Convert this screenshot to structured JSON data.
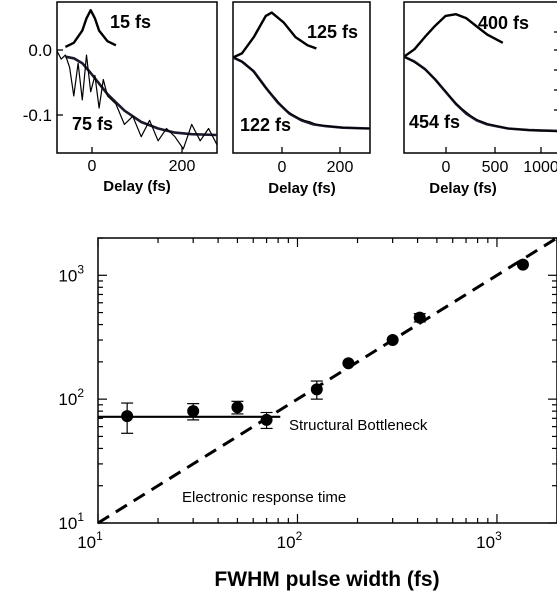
{
  "chart_data": [
    {
      "type": "line",
      "panel": "a",
      "xlabel": "Delay (fs)",
      "x_ticks": [
        "0",
        "200"
      ],
      "y_ticks": [
        "0.0",
        "-0.1"
      ],
      "xlim": [
        -80,
        300
      ],
      "ylim": [
        -0.13,
        0.055
      ],
      "labels": {
        "top": "15 fs",
        "bottom": "75 fs"
      },
      "series": [
        {
          "role": "pulse",
          "x": [
            -60,
            -40,
            -20,
            -10,
            0,
            10,
            20,
            40,
            60
          ],
          "y": [
            0.0,
            0.005,
            0.02,
            0.035,
            0.045,
            0.035,
            0.02,
            0.007,
            0.002
          ]
        },
        {
          "role": "fit",
          "x": [
            -60,
            -40,
            -20,
            0,
            20,
            40,
            80,
            120,
            160,
            200,
            240,
            300
          ],
          "y": [
            -0.012,
            -0.014,
            -0.02,
            -0.032,
            -0.045,
            -0.058,
            -0.078,
            -0.092,
            -0.1,
            -0.105,
            -0.107,
            -0.108
          ]
        },
        {
          "role": "data",
          "x": [
            -80,
            -70,
            -60,
            -50,
            -40,
            -30,
            -20,
            -10,
            0,
            10,
            20,
            30,
            40,
            60,
            80,
            100,
            120,
            140,
            160,
            180,
            200,
            220,
            240,
            260,
            280,
            300
          ],
          "y": [
            -0.005,
            -0.015,
            -0.01,
            -0.025,
            -0.06,
            -0.02,
            -0.065,
            -0.01,
            -0.055,
            -0.035,
            -0.075,
            -0.04,
            -0.06,
            -0.07,
            -0.095,
            -0.085,
            -0.11,
            -0.09,
            -0.115,
            -0.1,
            -0.11,
            -0.125,
            -0.095,
            -0.115,
            -0.1,
            -0.12
          ]
        }
      ]
    },
    {
      "type": "line",
      "panel": "b",
      "xlabel": "Delay (fs)",
      "x_ticks": [
        "0",
        "200"
      ],
      "xlim": [
        -110,
        350
      ],
      "ylim": [
        -0.13,
        0.055
      ],
      "labels": {
        "top": "125 fs",
        "bottom": "122 fs"
      },
      "series": [
        {
          "role": "pulse",
          "x": [
            -110,
            -80,
            -40,
            0,
            20,
            60,
            100,
            140,
            170
          ],
          "y": [
            -0.013,
            -0.008,
            0.012,
            0.038,
            0.042,
            0.03,
            0.012,
            0.002,
            -0.002
          ]
        },
        {
          "role": "fit",
          "x": [
            -110,
            -80,
            -40,
            0,
            40,
            80,
            120,
            160,
            200,
            260,
            350
          ],
          "y": [
            -0.013,
            -0.018,
            -0.03,
            -0.05,
            -0.068,
            -0.082,
            -0.09,
            -0.095,
            -0.097,
            -0.099,
            -0.1
          ]
        },
        {
          "role": "data",
          "x": [
            -110,
            -90,
            -70,
            -50,
            -30,
            -10,
            10,
            30,
            50,
            70,
            90,
            110,
            130,
            150,
            170,
            190,
            210,
            230,
            250,
            280,
            310,
            350
          ],
          "y": [
            -0.012,
            -0.016,
            -0.02,
            -0.027,
            -0.036,
            -0.045,
            -0.055,
            -0.062,
            -0.071,
            -0.078,
            -0.083,
            -0.087,
            -0.09,
            -0.092,
            -0.095,
            -0.096,
            -0.097,
            -0.098,
            -0.099,
            -0.099,
            -0.1,
            -0.1
          ]
        }
      ]
    },
    {
      "type": "line",
      "panel": "c",
      "xlabel": "Delay (fs)",
      "x_ticks": [
        "0",
        "500",
        "1000"
      ],
      "xlim": [
        -400,
        1100
      ],
      "ylim": [
        -0.13,
        0.055
      ],
      "labels": {
        "top": "400 fs",
        "bottom": "454 fs"
      },
      "series": [
        {
          "role": "pulse",
          "x": [
            -400,
            -300,
            -200,
            -100,
            0,
            100,
            200,
            300,
            400,
            550
          ],
          "y": [
            -0.012,
            -0.003,
            0.012,
            0.026,
            0.038,
            0.04,
            0.035,
            0.025,
            0.015,
            0.005
          ]
        },
        {
          "role": "fit",
          "x": [
            -400,
            -300,
            -200,
            -100,
            0,
            100,
            200,
            300,
            400,
            600,
            800,
            1100
          ],
          "y": [
            -0.012,
            -0.018,
            -0.027,
            -0.04,
            -0.055,
            -0.07,
            -0.082,
            -0.09,
            -0.095,
            -0.1,
            -0.102,
            -0.103
          ]
        },
        {
          "role": "data",
          "x": [
            -400,
            -350,
            -300,
            -250,
            -200,
            -150,
            -100,
            -50,
            0,
            50,
            100,
            150,
            200,
            250,
            300,
            400,
            500,
            600,
            700,
            800,
            900,
            1000,
            1100
          ],
          "y": [
            -0.012,
            -0.015,
            -0.019,
            -0.023,
            -0.028,
            -0.034,
            -0.04,
            -0.047,
            -0.054,
            -0.062,
            -0.069,
            -0.075,
            -0.08,
            -0.085,
            -0.089,
            -0.094,
            -0.097,
            -0.1,
            -0.101,
            -0.102,
            -0.103,
            -0.103,
            -0.104
          ]
        }
      ]
    },
    {
      "type": "scatter",
      "panel": "d",
      "xlabel": "FWHM pulse width (fs)",
      "x_scale": "log",
      "y_scale": "log",
      "xlim": [
        10,
        2000
      ],
      "ylim": [
        10,
        2000
      ],
      "x_ticks": [
        {
          "base": "10",
          "exp": "1",
          "value": 10
        },
        {
          "base": "10",
          "exp": "2",
          "value": 100
        },
        {
          "base": "10",
          "exp": "3",
          "value": 1000
        }
      ],
      "y_ticks": [
        {
          "base": "10",
          "exp": "1",
          "value": 10
        },
        {
          "base": "10",
          "exp": "2",
          "value": 100
        },
        {
          "base": "10",
          "exp": "3",
          "value": 1000
        }
      ],
      "points": [
        {
          "x": 14,
          "y": 73,
          "err": 20
        },
        {
          "x": 30,
          "y": 80,
          "err": 12
        },
        {
          "x": 50,
          "y": 86,
          "err": 10
        },
        {
          "x": 70,
          "y": 68,
          "err": 10
        },
        {
          "x": 125,
          "y": 120,
          "err": 20
        },
        {
          "x": 180,
          "y": 195,
          "err": 0
        },
        {
          "x": 300,
          "y": 300,
          "err": 0
        },
        {
          "x": 410,
          "y": 455,
          "err": 35
        },
        {
          "x": 1350,
          "y": 1220,
          "err": 0
        }
      ],
      "plateau_line": {
        "x": [
          10,
          82
        ],
        "y": [
          72,
          72
        ]
      },
      "diagonal_line": {
        "x": [
          10,
          2000
        ],
        "y": [
          10,
          2000
        ]
      },
      "annotations": {
        "plateau": "Structural Bottleneck",
        "diagonal": "Electronic response time"
      }
    }
  ]
}
